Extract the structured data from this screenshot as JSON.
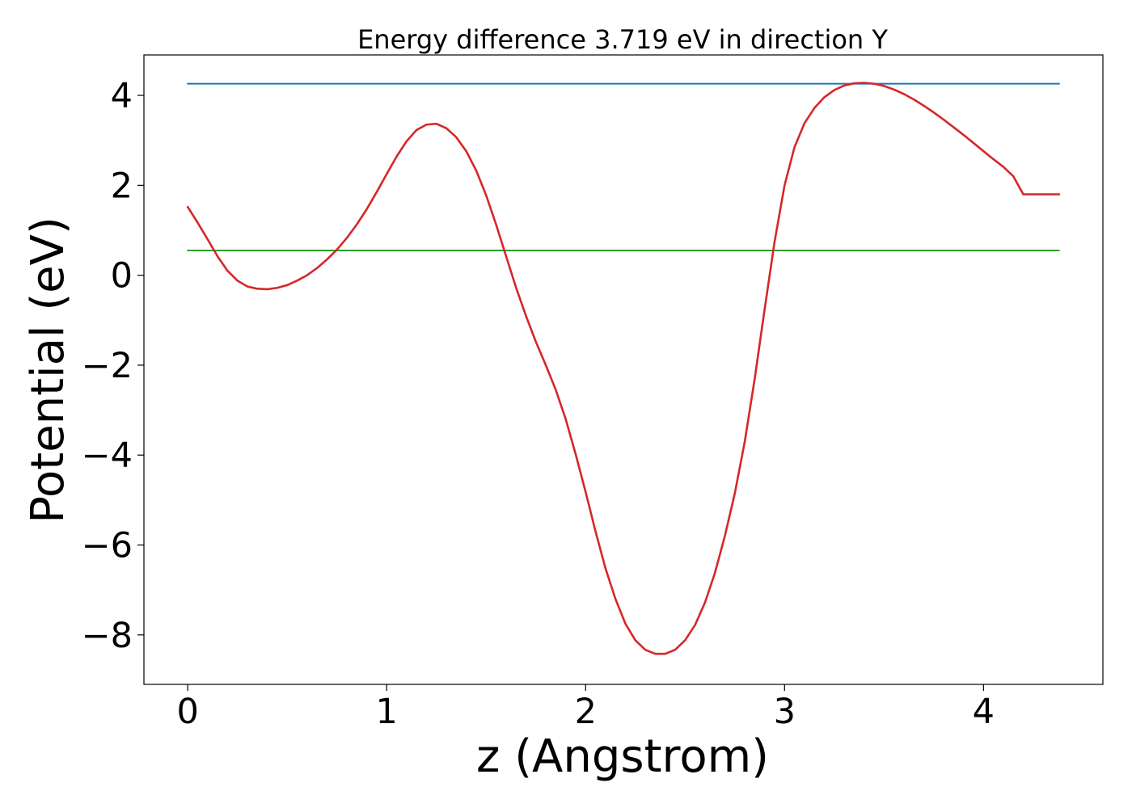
{
  "chart_data": {
    "type": "line",
    "title": "Energy difference 3.719 eV in direction Y",
    "xlabel": "z (Angstrom)",
    "ylabel": "Potential (eV)",
    "xlim": [
      -0.22,
      4.6
    ],
    "ylim": [
      -9.1,
      4.9
    ],
    "xticks": [
      0,
      1,
      2,
      3,
      4
    ],
    "xtick_labels": [
      "0",
      "1",
      "2",
      "3",
      "4"
    ],
    "yticks": [
      -8,
      -6,
      -4,
      -2,
      0,
      2,
      4
    ],
    "ytick_labels": [
      "−8",
      "−6",
      "−4",
      "−2",
      "0",
      "2",
      "4"
    ],
    "grid": false,
    "colors": {
      "potential": "#d62728",
      "upper": "#1f77b4",
      "lower": "#2ca02c"
    },
    "series": [
      {
        "key": "potential",
        "x": [
          0.0,
          0.05,
          0.1,
          0.15,
          0.2,
          0.25,
          0.3,
          0.35,
          0.4,
          0.45,
          0.5,
          0.55,
          0.6,
          0.65,
          0.7,
          0.75,
          0.8,
          0.85,
          0.9,
          0.95,
          1.0,
          1.05,
          1.1,
          1.15,
          1.2,
          1.25,
          1.3,
          1.35,
          1.4,
          1.45,
          1.5,
          1.55,
          1.6,
          1.65,
          1.7,
          1.75,
          1.8,
          1.85,
          1.9,
          1.95,
          2.0,
          2.05,
          2.1,
          2.15,
          2.2,
          2.25,
          2.3,
          2.35,
          2.4,
          2.45,
          2.5,
          2.55,
          2.6,
          2.65,
          2.7,
          2.75,
          2.8,
          2.85,
          2.9,
          2.95,
          3.0,
          3.05,
          3.1,
          3.15,
          3.2,
          3.25,
          3.3,
          3.35,
          3.4,
          3.45,
          3.5,
          3.55,
          3.6,
          3.65,
          3.7,
          3.75,
          3.8,
          3.85,
          3.9,
          3.95,
          4.0,
          4.05,
          4.1,
          4.15,
          4.2,
          4.25,
          4.3,
          4.35,
          4.38
        ],
        "y": [
          1.52,
          1.17,
          0.8,
          0.42,
          0.1,
          -0.12,
          -0.25,
          -0.3,
          -0.31,
          -0.28,
          -0.22,
          -0.12,
          0.0,
          0.16,
          0.35,
          0.57,
          0.83,
          1.13,
          1.47,
          1.85,
          2.25,
          2.64,
          2.98,
          3.23,
          3.35,
          3.37,
          3.27,
          3.07,
          2.76,
          2.33,
          1.78,
          1.13,
          0.43,
          -0.27,
          -0.9,
          -1.48,
          -2.0,
          -2.55,
          -3.2,
          -3.98,
          -4.82,
          -5.7,
          -6.52,
          -7.2,
          -7.75,
          -8.12,
          -8.33,
          -8.42,
          -8.42,
          -8.33,
          -8.12,
          -7.78,
          -7.28,
          -6.62,
          -5.8,
          -4.85,
          -3.7,
          -2.3,
          -0.75,
          0.75,
          2.0,
          2.85,
          3.38,
          3.72,
          3.96,
          4.12,
          4.22,
          4.27,
          4.28,
          4.26,
          4.21,
          4.13,
          4.03,
          3.91,
          3.77,
          3.62,
          3.46,
          3.29,
          3.12,
          2.94,
          2.76,
          2.58,
          2.41,
          2.2,
          1.8,
          1.8,
          1.8,
          1.8,
          1.8
        ]
      },
      {
        "key": "upper",
        "x": [
          0.0,
          4.38
        ],
        "y": [
          4.26,
          4.26
        ]
      },
      {
        "key": "lower",
        "x": [
          0.0,
          4.38
        ],
        "y": [
          0.55,
          0.55
        ]
      }
    ]
  }
}
